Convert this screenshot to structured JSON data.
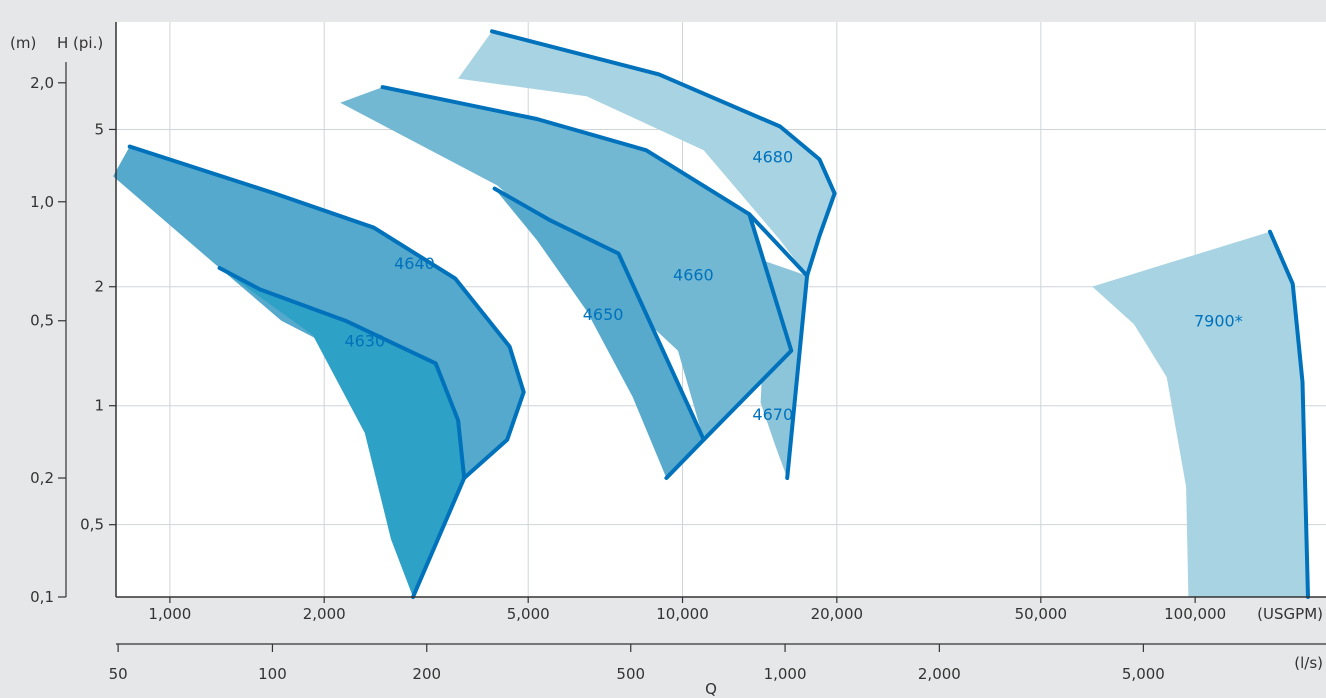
{
  "chart_data": {
    "type": "area",
    "x_axes": [
      {
        "unit": "(USGPM)",
        "scale": "log",
        "ticks": [
          {
            "v": 1000,
            "label": "1,000"
          },
          {
            "v": 2000,
            "label": "2,000"
          },
          {
            "v": 5000,
            "label": "5,000"
          },
          {
            "v": 10000,
            "label": "10,000"
          },
          {
            "v": 20000,
            "label": "20,000"
          },
          {
            "v": 50000,
            "label": "50,000"
          },
          {
            "v": 100000,
            "label": "100,000"
          }
        ]
      },
      {
        "unit": "(l/s)",
        "scale": "log",
        "ticks": [
          {
            "v": 50,
            "label": "50"
          },
          {
            "v": 100,
            "label": "100"
          },
          {
            "v": 200,
            "label": "200"
          },
          {
            "v": 500,
            "label": "500"
          },
          {
            "v": 1000,
            "label": "1,000"
          },
          {
            "v": 2000,
            "label": "2,000"
          },
          {
            "v": 5000,
            "label": "5,000"
          }
        ]
      }
    ],
    "xlabel": "Q",
    "y_axes": [
      {
        "unit": "H (pi.)",
        "scale": "log",
        "ticks": [
          {
            "v": 0.5,
            "label": "0,5"
          },
          {
            "v": 1,
            "label": "1"
          },
          {
            "v": 2,
            "label": "2"
          },
          {
            "v": 5,
            "label": "5"
          }
        ]
      },
      {
        "unit": "(m)",
        "scale": "log",
        "ticks": [
          {
            "v": 0.1,
            "label": "0,1"
          },
          {
            "v": 0.2,
            "label": "0,2"
          },
          {
            "v": 0.5,
            "label": "0,5"
          },
          {
            "v": 1,
            "label": "1,0"
          },
          {
            "v": 2,
            "label": "2,0"
          }
        ]
      }
    ],
    "xlim_usgpm": [
      785,
      180000
    ],
    "ylim_m": [
      0.1,
      2.85
    ],
    "grid": true,
    "series": [
      {
        "name": "4680",
        "color": "#a8d3e3",
        "points": [
          [
            3650,
            2.05
          ],
          [
            4250,
            2.7
          ],
          [
            9000,
            2.1
          ],
          [
            15500,
            1.55
          ],
          [
            18500,
            1.28
          ],
          [
            19800,
            1.05
          ],
          [
            18500,
            0.82
          ],
          [
            17500,
            0.65
          ],
          [
            15500,
            0.8
          ],
          [
            11000,
            1.35
          ],
          [
            6500,
            1.85
          ],
          [
            3650,
            2.05
          ]
        ]
      },
      {
        "name": "4670",
        "color": "#8cc4d9",
        "points": [
          [
            11500,
            0.92
          ],
          [
            13500,
            0.73
          ],
          [
            17500,
            0.65
          ],
          [
            16000,
            0.2
          ],
          [
            15200,
            0.24
          ],
          [
            14200,
            0.31
          ],
          [
            14500,
            0.55
          ],
          [
            11500,
            0.92
          ]
        ]
      },
      {
        "name": "4660",
        "color": "#72b8d3",
        "points": [
          [
            2150,
            1.78
          ],
          [
            2600,
            1.95
          ],
          [
            5200,
            1.62
          ],
          [
            8500,
            1.35
          ],
          [
            13500,
            0.93
          ],
          [
            16300,
            0.42
          ],
          [
            11000,
            0.25
          ],
          [
            9800,
            0.42
          ],
          [
            6000,
            0.76
          ],
          [
            4350,
            1.1
          ],
          [
            2150,
            1.78
          ]
        ]
      },
      {
        "name": "4650",
        "color": "#58aacd",
        "points": [
          [
            4300,
            1.08
          ],
          [
            5500,
            0.9
          ],
          [
            7500,
            0.74
          ],
          [
            11000,
            0.25
          ],
          [
            9300,
            0.2
          ],
          [
            8000,
            0.32
          ],
          [
            6500,
            0.53
          ],
          [
            5200,
            0.8
          ],
          [
            4300,
            1.08
          ]
        ]
      },
      {
        "name": "4640",
        "color": "#55a9cd",
        "points": [
          [
            775,
            1.16
          ],
          [
            835,
            1.38
          ],
          [
            1600,
            1.05
          ],
          [
            2500,
            0.86
          ],
          [
            3600,
            0.64
          ],
          [
            4600,
            0.43
          ],
          [
            4900,
            0.33
          ],
          [
            4550,
            0.25
          ],
          [
            3750,
            0.2
          ],
          [
            3300,
            0.26
          ],
          [
            2700,
            0.36
          ],
          [
            1650,
            0.5
          ],
          [
            1250,
            0.68
          ],
          [
            775,
            1.16
          ]
        ]
      },
      {
        "name": "4630",
        "color": "#2ea2c6",
        "points": [
          [
            1250,
            0.68
          ],
          [
            1500,
            0.6
          ],
          [
            2200,
            0.5
          ],
          [
            3300,
            0.39
          ],
          [
            3650,
            0.28
          ],
          [
            3750,
            0.2
          ],
          [
            2980,
            0.1
          ],
          [
            2700,
            0.14
          ],
          [
            2400,
            0.26
          ],
          [
            1900,
            0.46
          ],
          [
            1250,
            0.68
          ]
        ]
      },
      {
        "name": "7900*",
        "color": "#a8d3e3",
        "points": [
          [
            63000,
            0.61
          ],
          [
            140000,
            0.84
          ],
          [
            155000,
            0.62
          ],
          [
            162000,
            0.35
          ],
          [
            166000,
            0.1
          ],
          [
            97000,
            0.1
          ],
          [
            96000,
            0.19
          ],
          [
            88000,
            0.36
          ],
          [
            76000,
            0.49
          ],
          [
            63000,
            0.61
          ]
        ]
      }
    ],
    "curves": [
      {
        "name": "edge-4680-top",
        "points": [
          [
            4250,
            2.7
          ],
          [
            9000,
            2.1
          ],
          [
            15500,
            1.55
          ],
          [
            18500,
            1.28
          ],
          [
            19800,
            1.05
          ],
          [
            18500,
            0.82
          ],
          [
            17500,
            0.65
          ]
        ]
      },
      {
        "name": "edge-4670-right",
        "points": [
          [
            17500,
            0.65
          ],
          [
            16000,
            0.2
          ]
        ]
      },
      {
        "name": "edge-4660-top",
        "points": [
          [
            2600,
            1.95
          ],
          [
            5200,
            1.62
          ],
          [
            8500,
            1.35
          ],
          [
            13500,
            0.93
          ],
          [
            17500,
            0.65
          ]
        ]
      },
      {
        "name": "edge-4660-right",
        "points": [
          [
            13500,
            0.93
          ],
          [
            16300,
            0.42
          ],
          [
            11000,
            0.25
          ]
        ]
      },
      {
        "name": "edge-4650-top",
        "points": [
          [
            4300,
            1.08
          ],
          [
            5500,
            0.9
          ],
          [
            7500,
            0.74
          ],
          [
            11000,
            0.25
          ]
        ]
      },
      {
        "name": "edge-4650-bottom",
        "points": [
          [
            11000,
            0.25
          ],
          [
            9300,
            0.2
          ]
        ]
      },
      {
        "name": "edge-4640-top",
        "points": [
          [
            835,
            1.38
          ],
          [
            1600,
            1.05
          ],
          [
            2500,
            0.86
          ],
          [
            3600,
            0.64
          ],
          [
            4600,
            0.43
          ],
          [
            4900,
            0.33
          ],
          [
            4550,
            0.25
          ],
          [
            3750,
            0.2
          ]
        ]
      },
      {
        "name": "edge-4630-top",
        "points": [
          [
            1250,
            0.68
          ],
          [
            1500,
            0.6
          ],
          [
            2200,
            0.5
          ],
          [
            3300,
            0.39
          ],
          [
            3650,
            0.28
          ],
          [
            3750,
            0.2
          ]
        ]
      },
      {
        "name": "edge-4630-bottom",
        "points": [
          [
            3750,
            0.2
          ],
          [
            2980,
            0.1
          ]
        ]
      },
      {
        "name": "edge-7900-right",
        "points": [
          [
            140000,
            0.84
          ],
          [
            155000,
            0.62
          ],
          [
            162000,
            0.35
          ],
          [
            166000,
            0.1
          ]
        ]
      }
    ],
    "labels": [
      {
        "text": "4680",
        "x": 15000,
        "y": 1.3
      },
      {
        "text": "4670",
        "x": 15000,
        "y": 0.29
      },
      {
        "text": "4660",
        "x": 10500,
        "y": 0.655
      },
      {
        "text": "4650",
        "x": 7000,
        "y": 0.52
      },
      {
        "text": "4640",
        "x": 3000,
        "y": 0.7
      },
      {
        "text": "4630",
        "x": 2400,
        "y": 0.445
      },
      {
        "text": "7900*",
        "x": 111000,
        "y": 0.5
      }
    ]
  }
}
